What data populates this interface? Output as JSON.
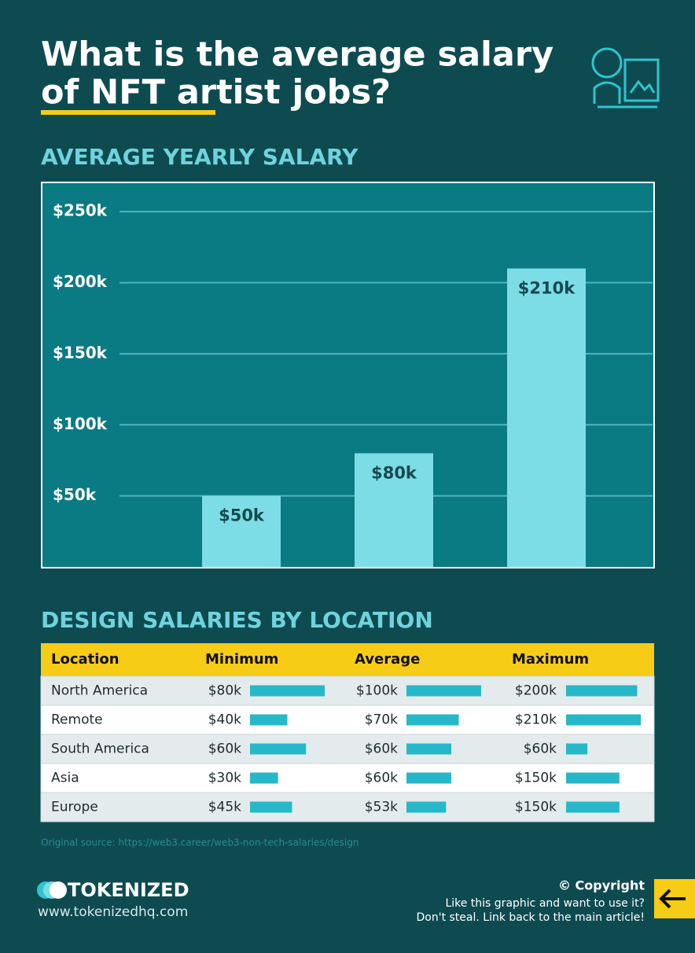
{
  "header": {
    "title_lines": [
      "What is the average salary",
      "of NFT artist jobs?"
    ]
  },
  "chart_data": {
    "type": "bar",
    "title": "AVERAGE YEARLY SALARY",
    "categories": [
      null,
      null,
      null
    ],
    "values": [
      50000,
      80000,
      210000
    ],
    "value_labels": [
      "$50k",
      "$80k",
      "$210k"
    ],
    "color": "#7ddde6",
    "ylim": [
      0,
      270000
    ],
    "yticks": [
      {
        "value": 50000,
        "label": "$50k"
      },
      {
        "value": 100000,
        "label": "$100k"
      },
      {
        "value": 150000,
        "label": "$150k"
      },
      {
        "value": 200000,
        "label": "$200k"
      },
      {
        "value": 250000,
        "label": "$250k"
      }
    ],
    "grid": true
  },
  "table": {
    "title": "DESIGN SALARIES BY LOCATION",
    "headers": [
      "Location",
      "Minimum",
      "Average",
      "Maximum"
    ],
    "bar_color": "#26b8c8",
    "rows": [
      {
        "location": "North America",
        "values": [
          80000,
          100000,
          200000
        ],
        "value_labels": [
          "$80k",
          "$100k",
          "$200k"
        ]
      },
      {
        "location": "Remote",
        "values": [
          40000,
          70000,
          210000
        ],
        "value_labels": [
          "$40k",
          "$70k",
          "$210k"
        ]
      },
      {
        "location": "South America",
        "values": [
          60000,
          60000,
          60000
        ],
        "value_labels": [
          "$60k",
          "$60k",
          "$60k"
        ]
      },
      {
        "location": "Asia",
        "values": [
          30000,
          60000,
          150000
        ],
        "value_labels": [
          "$30k",
          "$60k",
          "$150k"
        ]
      },
      {
        "location": "Europe",
        "values": [
          45000,
          53000,
          150000
        ],
        "value_labels": [
          "$45k",
          "$53k",
          "$150k"
        ]
      }
    ],
    "source": "Original source: https://web3.career/web3-non-tech-salaries/design"
  },
  "footer": {
    "brand": "TOKENIZED",
    "url": "www.tokenizedhq.com",
    "copyright": "© Copyright",
    "lines": [
      "Like this graphic and want to use it?",
      "Don't steal. Link back to the main article!"
    ]
  }
}
